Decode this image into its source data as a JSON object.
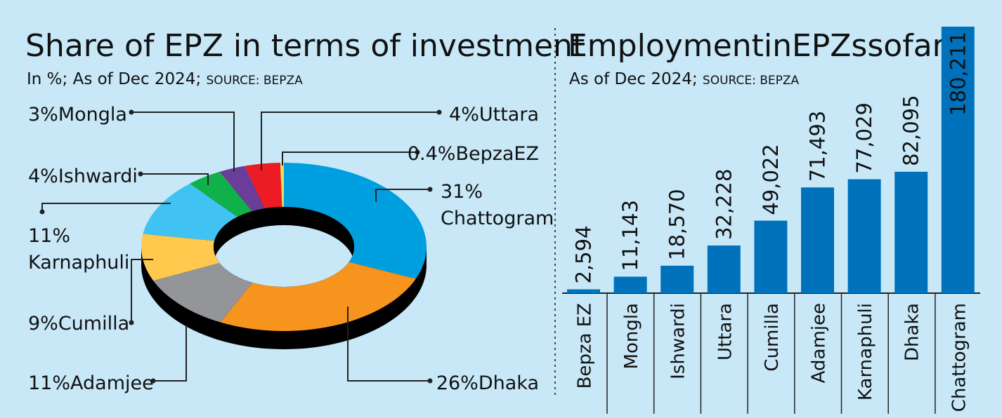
{
  "chart_data": [
    {
      "type": "pie",
      "title": "Share of EPZ in terms of investment",
      "subtitle": "In %; As of Dec 2024; ",
      "source": "SOURCE: BEPZA",
      "donut": true,
      "slices": [
        {
          "name": "Chattogram",
          "value": 31,
          "label_pct": "31%",
          "color": "#009fdf"
        },
        {
          "name": "Dhaka",
          "value": 26,
          "label_pct": "26%",
          "color": "#f7941d"
        },
        {
          "name": "Adamjee",
          "value": 11,
          "label_pct": "11%",
          "color": "#939598"
        },
        {
          "name": "Cumilla",
          "value": 9,
          "label_pct": "9%",
          "color": "#ffc94d"
        },
        {
          "name": "Karnaphuli",
          "value": 11,
          "label_pct": "11%",
          "color": "#40c3f2"
        },
        {
          "name": "Ishwardi",
          "value": 4,
          "label_pct": "4%",
          "color": "#10b04a"
        },
        {
          "name": "Mongla",
          "value": 3,
          "label_pct": "3%",
          "color": "#6a3d9a"
        },
        {
          "name": "Uttara",
          "value": 4,
          "label_pct": "4%",
          "color": "#ed1c24"
        },
        {
          "name": "BepzaEZ",
          "value": 0.4,
          "label_pct": "0.4%",
          "color": "#e8e05a"
        }
      ]
    },
    {
      "type": "bar",
      "title": "EmploymentinEPZssofar",
      "subtitle": "As of Dec 2024; ",
      "source": "SOURCE: BEPZA",
      "categories": [
        "Bepza EZ",
        "Mongla",
        "Ishwardi",
        "Uttara",
        "Cumilla",
        "Adamjee",
        "Karnaphuli",
        "Dhaka",
        "Chattogram"
      ],
      "values": [
        2594,
        11143,
        18570,
        32228,
        49022,
        71493,
        77029,
        82095,
        180211
      ],
      "value_labels": [
        "2,594",
        "11,143",
        "18,570",
        "32,228",
        "49,022",
        "71,493",
        "77,029",
        "82,095",
        "180,211"
      ],
      "bar_color": "#0072bc",
      "ylim": [
        0,
        180211
      ]
    }
  ]
}
